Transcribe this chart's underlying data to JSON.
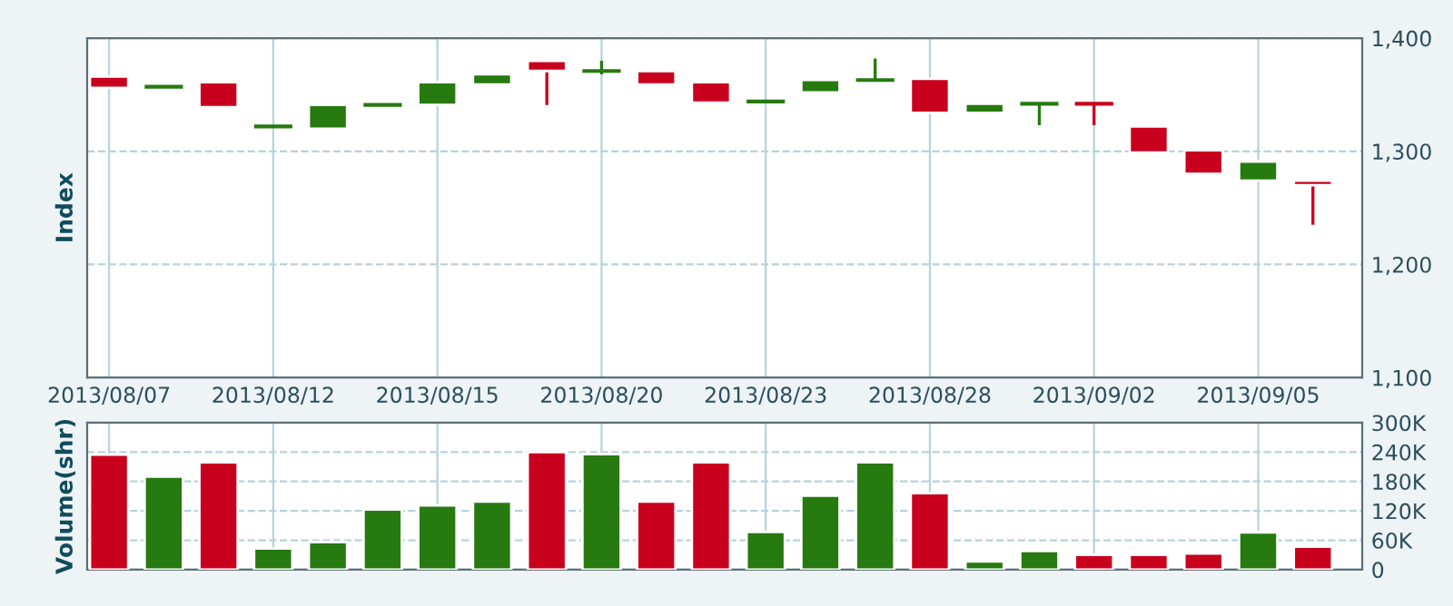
{
  "chart_data": [
    {
      "type": "candlestick",
      "ylabel": "Index",
      "categories": [
        "2013/08/07",
        null,
        null,
        "2013/08/12",
        null,
        null,
        "2013/08/15",
        null,
        null,
        "2013/08/20",
        null,
        null,
        "2013/08/23",
        null,
        null,
        "2013/08/28",
        null,
        null,
        "2013/09/02",
        null,
        null,
        "2013/09/05",
        null
      ],
      "ohlc": [
        [
          1366,
          1366,
          1356,
          1356
        ],
        [
          1357,
          1357,
          1357,
          1357
        ],
        [
          1361,
          1361,
          1339,
          1339
        ],
        [
          1322,
          1322,
          1322,
          1322
        ],
        [
          1320,
          1341,
          1320,
          1341
        ],
        [
          1341,
          1341,
          1341,
          1341
        ],
        [
          1341,
          1361,
          1341,
          1361
        ],
        [
          1359,
          1368,
          1359,
          1368
        ],
        [
          1380,
          1380,
          1341,
          1371
        ],
        [
          1371,
          1380,
          1368,
          1371
        ],
        [
          1371,
          1371,
          1359,
          1359
        ],
        [
          1361,
          1361,
          1343,
          1343
        ],
        [
          1344,
          1344,
          1344,
          1344
        ],
        [
          1352,
          1363,
          1352,
          1363
        ],
        [
          1363,
          1382,
          1363,
          1363
        ],
        [
          1364,
          1364,
          1334,
          1334
        ],
        [
          1334,
          1342,
          1334,
          1342
        ],
        [
          1342,
          1342,
          1323,
          1342
        ],
        [
          1342,
          1342,
          1323,
          1342
        ],
        [
          1322,
          1322,
          1299,
          1299
        ],
        [
          1301,
          1301,
          1280,
          1280
        ],
        [
          1274,
          1291,
          1274,
          1291
        ],
        [
          1274,
          1274,
          1235,
          1270
        ]
      ],
      "colors": [
        "#c8001e",
        "#267a0f",
        "#c8001e",
        "#267a0f",
        "#267a0f",
        "#267a0f",
        "#267a0f",
        "#267a0f",
        "#c8001e",
        "#267a0f",
        "#c8001e",
        "#c8001e",
        "#267a0f",
        "#267a0f",
        "#267a0f",
        "#c8001e",
        "#267a0f",
        "#267a0f",
        "#c8001e",
        "#c8001e",
        "#c8001e",
        "#267a0f",
        "#c8001e"
      ],
      "ylim": [
        1100,
        1400
      ],
      "yticks": [
        {
          "value": 1100,
          "label": "1,100"
        },
        {
          "value": 1200,
          "label": "1,200"
        },
        {
          "value": 1300,
          "label": "1,300"
        },
        {
          "value": 1400,
          "label": "1,400"
        }
      ],
      "grid": true
    },
    {
      "type": "bar",
      "ylabel": "Volume(shr)",
      "categories": [
        "2013/08/07",
        null,
        null,
        "2013/08/12",
        null,
        null,
        "2013/08/15",
        null,
        null,
        "2013/08/20",
        null,
        null,
        "2013/08/23",
        null,
        null,
        "2013/08/28",
        null,
        null,
        "2013/09/02",
        null,
        null,
        "2013/09/05",
        null
      ],
      "values": [
        235,
        190,
        219,
        43,
        56,
        123,
        131,
        139,
        240,
        236,
        139,
        219,
        77,
        151,
        219,
        156,
        17,
        38,
        30,
        30,
        33,
        76,
        47
      ],
      "colors": [
        "#c8001e",
        "#267a0f",
        "#c8001e",
        "#267a0f",
        "#267a0f",
        "#267a0f",
        "#267a0f",
        "#267a0f",
        "#c8001e",
        "#267a0f",
        "#c8001e",
        "#c8001e",
        "#267a0f",
        "#267a0f",
        "#267a0f",
        "#c8001e",
        "#267a0f",
        "#267a0f",
        "#c8001e",
        "#c8001e",
        "#c8001e",
        "#267a0f",
        "#c8001e"
      ],
      "ylim": [
        0,
        300
      ],
      "yticks": [
        {
          "value": 0,
          "label": "0"
        },
        {
          "value": 60,
          "label": "60K"
        },
        {
          "value": 120,
          "label": "120K"
        },
        {
          "value": 180,
          "label": "180K"
        },
        {
          "value": 240,
          "label": "240K"
        },
        {
          "value": 300,
          "label": "300K"
        }
      ],
      "grid": true,
      "tick_labels": "y"
    }
  ]
}
